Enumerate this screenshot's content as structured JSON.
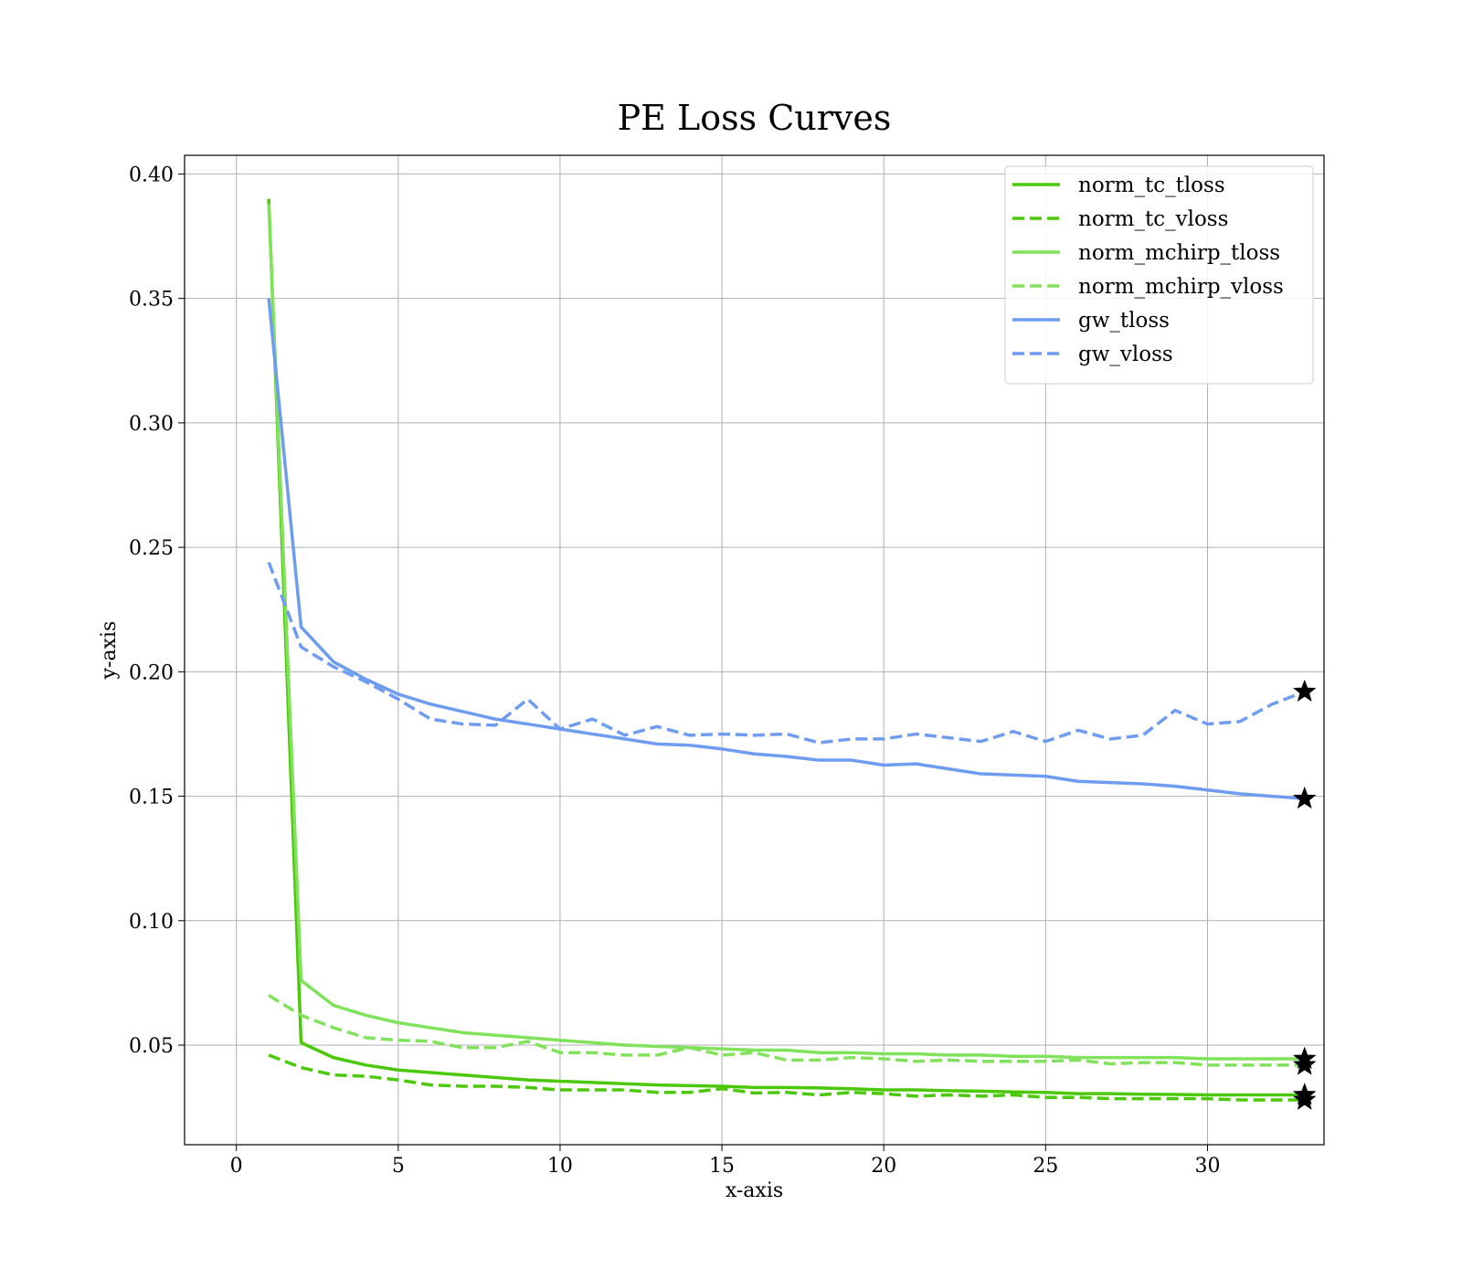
{
  "chart_data": {
    "type": "line",
    "title": "PE Loss Curves",
    "xlabel": "x-axis",
    "ylabel": "y-axis",
    "xlim": [
      -1.6,
      33.6
    ],
    "ylim": [
      0.01,
      0.4075
    ],
    "xticks": [
      0,
      5,
      10,
      15,
      20,
      25,
      30
    ],
    "yticks": [
      0.05,
      0.1,
      0.15,
      0.2,
      0.25,
      0.3,
      0.35,
      0.4
    ],
    "ytick_labels": [
      "0.05",
      "0.10",
      "0.15",
      "0.20",
      "0.25",
      "0.30",
      "0.35",
      "0.40"
    ],
    "grid": true,
    "legend_position": "top-right",
    "x": [
      1,
      2,
      3,
      4,
      5,
      6,
      7,
      8,
      9,
      10,
      11,
      12,
      13,
      14,
      15,
      16,
      17,
      18,
      19,
      20,
      21,
      22,
      23,
      24,
      25,
      26,
      27,
      28,
      29,
      30,
      31,
      32,
      33
    ],
    "series": [
      {
        "name": "norm_tc_tloss",
        "color": "#4cc80a",
        "dash": "solid",
        "values": [
          0.39,
          0.051,
          0.045,
          0.042,
          0.04,
          0.039,
          0.038,
          0.037,
          0.036,
          0.0355,
          0.035,
          0.0345,
          0.034,
          0.0337,
          0.0335,
          0.033,
          0.033,
          0.0328,
          0.0325,
          0.032,
          0.032,
          0.0317,
          0.0315,
          0.0312,
          0.031,
          0.0305,
          0.0305,
          0.0303,
          0.0302,
          0.03,
          0.03,
          0.03,
          0.03
        ],
        "end_marker": "star"
      },
      {
        "name": "norm_tc_vloss",
        "color": "#4cc80a",
        "dash": "dashed",
        "values": [
          0.046,
          0.041,
          0.038,
          0.0375,
          0.036,
          0.034,
          0.0335,
          0.0335,
          0.033,
          0.032,
          0.032,
          0.032,
          0.031,
          0.031,
          0.0325,
          0.0308,
          0.031,
          0.03,
          0.031,
          0.0305,
          0.0295,
          0.03,
          0.0295,
          0.03,
          0.029,
          0.029,
          0.0285,
          0.0285,
          0.0285,
          0.0285,
          0.028,
          0.028,
          0.028
        ],
        "end_marker": "star"
      },
      {
        "name": "norm_mchirp_tloss",
        "color": "#80e25a",
        "dash": "solid",
        "values": [
          0.388,
          0.076,
          0.066,
          0.062,
          0.059,
          0.057,
          0.055,
          0.054,
          0.053,
          0.052,
          0.051,
          0.05,
          0.0495,
          0.049,
          0.0485,
          0.048,
          0.048,
          0.047,
          0.047,
          0.0465,
          0.0465,
          0.046,
          0.046,
          0.0455,
          0.0455,
          0.045,
          0.045,
          0.045,
          0.045,
          0.0445,
          0.0445,
          0.0445,
          0.0445
        ],
        "end_marker": "star"
      },
      {
        "name": "norm_mchirp_vloss",
        "color": "#80e25a",
        "dash": "dashed",
        "values": [
          0.07,
          0.062,
          0.057,
          0.053,
          0.052,
          0.0515,
          0.049,
          0.049,
          0.0515,
          0.047,
          0.047,
          0.046,
          0.046,
          0.049,
          0.046,
          0.047,
          0.044,
          0.044,
          0.045,
          0.0445,
          0.0435,
          0.044,
          0.0435,
          0.0435,
          0.0435,
          0.044,
          0.0425,
          0.043,
          0.043,
          0.042,
          0.042,
          0.042,
          0.042
        ],
        "end_marker": "star"
      },
      {
        "name": "gw_tloss",
        "color": "#6e9cf0",
        "dash": "solid",
        "values": [
          0.35,
          0.218,
          0.204,
          0.197,
          0.191,
          0.187,
          0.184,
          0.181,
          0.179,
          0.177,
          0.175,
          0.173,
          0.171,
          0.1705,
          0.169,
          0.167,
          0.166,
          0.1645,
          0.1645,
          0.1625,
          0.163,
          0.161,
          0.159,
          0.1585,
          0.158,
          0.156,
          0.1555,
          0.155,
          0.154,
          0.1525,
          0.151,
          0.15,
          0.149
        ],
        "end_marker": "star"
      },
      {
        "name": "gw_vloss",
        "color": "#6e9cf0",
        "dash": "dashed",
        "values": [
          0.244,
          0.21,
          0.202,
          0.196,
          0.189,
          0.181,
          0.179,
          0.1785,
          0.189,
          0.177,
          0.181,
          0.1745,
          0.178,
          0.1745,
          0.175,
          0.1745,
          0.175,
          0.1715,
          0.173,
          0.173,
          0.175,
          0.1735,
          0.172,
          0.176,
          0.172,
          0.1765,
          0.173,
          0.1745,
          0.1845,
          0.179,
          0.18,
          0.187,
          0.192
        ],
        "end_marker": "star"
      }
    ]
  }
}
